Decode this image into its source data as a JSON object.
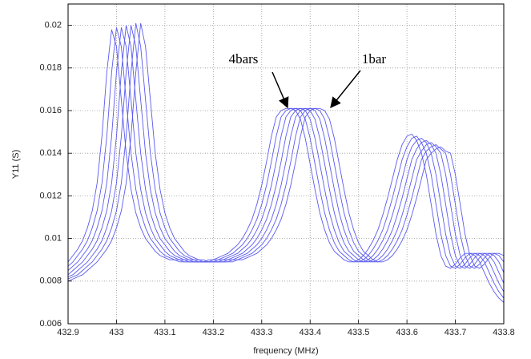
{
  "chart_data": {
    "type": "line",
    "xlabel": "frequency (MHz)",
    "ylabel": "Y11 (S)",
    "annotations": [
      {
        "text": "4bars"
      },
      {
        "text": "1bar"
      }
    ],
    "xlim": [
      432.9,
      433.8
    ],
    "ylim": [
      0.006,
      0.021
    ],
    "xticks": [
      432.9,
      433,
      433.1,
      433.2,
      433.3,
      433.4,
      433.5,
      433.6,
      433.7,
      433.8
    ],
    "yticks": [
      0.006,
      0.008,
      0.01,
      0.012,
      0.014,
      0.016,
      0.018,
      0.02
    ],
    "grid": true,
    "x": [
      432.9,
      432.91,
      432.92,
      432.93,
      432.94,
      432.95,
      432.96,
      432.97,
      432.98,
      432.99,
      433,
      433.01,
      433.02,
      433.03,
      433.04,
      433.05,
      433.06,
      433.07,
      433.08,
      433.09,
      433.1,
      433.11,
      433.12,
      433.13,
      433.14,
      433.15,
      433.16,
      433.17,
      433.18,
      433.19,
      433.2,
      433.21,
      433.22,
      433.23,
      433.24,
      433.25,
      433.26,
      433.27,
      433.28,
      433.29,
      433.3,
      433.31,
      433.32,
      433.33,
      433.34,
      433.35,
      433.36,
      433.37,
      433.38,
      433.39,
      433.4,
      433.41,
      433.42,
      433.43,
      433.44,
      433.45,
      433.46,
      433.47,
      433.48,
      433.49,
      433.5,
      433.51,
      433.52,
      433.53,
      433.54,
      433.55,
      433.56,
      433.57,
      433.58,
      433.59,
      433.6,
      433.61,
      433.62,
      433.63,
      433.64,
      433.65,
      433.66,
      433.67,
      433.68,
      433.69,
      433.7,
      433.71,
      433.72,
      433.73,
      433.74,
      433.75,
      433.76,
      433.77,
      433.78,
      433.79,
      433.8
    ],
    "series": [
      {
        "color": "#5a5af0",
        "values": [
          0.0089,
          0.0092,
          0.0095,
          0.0099,
          0.0105,
          0.0113,
          0.0126,
          0.0148,
          0.0178,
          0.0198,
          0.019,
          0.0165,
          0.014,
          0.0123,
          0.0112,
          0.0105,
          0.01,
          0.0097,
          0.0094,
          0.0092,
          0.0091,
          0.009,
          0.009,
          0.0089,
          0.0089,
          0.0089,
          0.0089,
          0.0089,
          0.0089,
          0.009,
          0.009,
          0.0091,
          0.0092,
          0.0093,
          0.0095,
          0.0097,
          0.01,
          0.0104,
          0.0109,
          0.0116,
          0.0125,
          0.0136,
          0.0148,
          0.0157,
          0.016,
          0.0161,
          0.0161,
          0.016,
          0.0156,
          0.0147,
          0.0135,
          0.0123,
          0.0112,
          0.0104,
          0.0098,
          0.0094,
          0.0092,
          0.009,
          0.0089,
          0.0089,
          0.009,
          0.0092,
          0.0095,
          0.0099,
          0.0104,
          0.0111,
          0.0119,
          0.0128,
          0.0137,
          0.0144,
          0.0148,
          0.0149,
          0.0146,
          0.014,
          0.013,
          0.0116,
          0.0102,
          0.0092,
          0.0087,
          0.0086,
          0.0088,
          0.0091,
          0.0093,
          0.0093,
          0.0092,
          0.0089,
          0.0084,
          0.0079,
          0.0075,
          0.0072,
          0.007
        ]
      },
      {
        "color": "#5a5af0",
        "values": [
          0.0087,
          0.0089,
          0.0092,
          0.0095,
          0.0099,
          0.0105,
          0.0113,
          0.0126,
          0.0148,
          0.0178,
          0.0199,
          0.019,
          0.0165,
          0.014,
          0.0123,
          0.0112,
          0.0105,
          0.01,
          0.0097,
          0.0094,
          0.0092,
          0.0091,
          0.009,
          0.009,
          0.0089,
          0.0089,
          0.0089,
          0.0089,
          0.0089,
          0.0089,
          0.009,
          0.009,
          0.0091,
          0.0092,
          0.0093,
          0.0095,
          0.0097,
          0.01,
          0.0104,
          0.0109,
          0.0116,
          0.0125,
          0.0136,
          0.0148,
          0.0157,
          0.016,
          0.0161,
          0.0161,
          0.016,
          0.0156,
          0.0147,
          0.0135,
          0.0123,
          0.0112,
          0.0104,
          0.0098,
          0.0094,
          0.0092,
          0.009,
          0.0089,
          0.0089,
          0.009,
          0.0092,
          0.0095,
          0.0099,
          0.0104,
          0.0111,
          0.0119,
          0.0128,
          0.0137,
          0.0143,
          0.0147,
          0.0148,
          0.0145,
          0.014,
          0.013,
          0.0116,
          0.0102,
          0.0092,
          0.0087,
          0.0086,
          0.0088,
          0.0091,
          0.0093,
          0.0093,
          0.0092,
          0.0089,
          0.0084,
          0.0079,
          0.0075,
          0.0072
        ]
      },
      {
        "color": "#5a5af0",
        "values": [
          0.0085,
          0.0087,
          0.0089,
          0.0092,
          0.0095,
          0.0099,
          0.0105,
          0.0113,
          0.0126,
          0.0148,
          0.0178,
          0.0199,
          0.019,
          0.0165,
          0.014,
          0.0123,
          0.0112,
          0.0105,
          0.01,
          0.0097,
          0.0094,
          0.0092,
          0.0091,
          0.009,
          0.009,
          0.0089,
          0.0089,
          0.0089,
          0.0089,
          0.0089,
          0.0089,
          0.009,
          0.009,
          0.0091,
          0.0092,
          0.0093,
          0.0095,
          0.0097,
          0.01,
          0.0104,
          0.0109,
          0.0116,
          0.0125,
          0.0136,
          0.0148,
          0.0157,
          0.016,
          0.0161,
          0.0161,
          0.016,
          0.0156,
          0.0147,
          0.0135,
          0.0123,
          0.0112,
          0.0104,
          0.0098,
          0.0094,
          0.0092,
          0.009,
          0.0089,
          0.0089,
          0.009,
          0.0092,
          0.0095,
          0.0099,
          0.0104,
          0.0111,
          0.0119,
          0.0128,
          0.0137,
          0.0143,
          0.0146,
          0.0147,
          0.0145,
          0.014,
          0.013,
          0.0116,
          0.0102,
          0.0092,
          0.0087,
          0.0086,
          0.0088,
          0.0091,
          0.0093,
          0.0093,
          0.0092,
          0.0089,
          0.0084,
          0.0079,
          0.0075
        ]
      },
      {
        "color": "#5a5af0",
        "values": [
          0.0083,
          0.0085,
          0.0087,
          0.0089,
          0.0092,
          0.0095,
          0.0099,
          0.0105,
          0.0113,
          0.0126,
          0.0148,
          0.0178,
          0.02,
          0.019,
          0.0165,
          0.014,
          0.0123,
          0.0112,
          0.0105,
          0.01,
          0.0097,
          0.0094,
          0.0092,
          0.0091,
          0.009,
          0.009,
          0.0089,
          0.0089,
          0.0089,
          0.0089,
          0.0089,
          0.0089,
          0.009,
          0.009,
          0.0091,
          0.0092,
          0.0093,
          0.0095,
          0.0097,
          0.01,
          0.0104,
          0.0109,
          0.0116,
          0.0125,
          0.0136,
          0.0148,
          0.0157,
          0.016,
          0.0161,
          0.0161,
          0.016,
          0.0156,
          0.0147,
          0.0135,
          0.0123,
          0.0112,
          0.0104,
          0.0098,
          0.0094,
          0.0092,
          0.009,
          0.0089,
          0.0089,
          0.009,
          0.0092,
          0.0095,
          0.0099,
          0.0104,
          0.0111,
          0.0119,
          0.0128,
          0.0137,
          0.0142,
          0.0145,
          0.0146,
          0.0144,
          0.014,
          0.013,
          0.0116,
          0.0102,
          0.0092,
          0.0087,
          0.0086,
          0.0088,
          0.0091,
          0.0093,
          0.0093,
          0.0092,
          0.0089,
          0.0084,
          0.0079
        ]
      },
      {
        "color": "#5a5af0",
        "values": [
          0.0082,
          0.0083,
          0.0085,
          0.0087,
          0.0089,
          0.0092,
          0.0095,
          0.0099,
          0.0105,
          0.0113,
          0.0126,
          0.0148,
          0.0178,
          0.02,
          0.019,
          0.0165,
          0.014,
          0.0123,
          0.0112,
          0.0105,
          0.01,
          0.0097,
          0.0094,
          0.0092,
          0.0091,
          0.009,
          0.009,
          0.0089,
          0.0089,
          0.0089,
          0.0089,
          0.0089,
          0.0089,
          0.009,
          0.009,
          0.0091,
          0.0092,
          0.0093,
          0.0095,
          0.0097,
          0.01,
          0.0104,
          0.0109,
          0.0116,
          0.0125,
          0.0136,
          0.0148,
          0.0157,
          0.016,
          0.0161,
          0.0161,
          0.016,
          0.0156,
          0.0147,
          0.0135,
          0.0123,
          0.0112,
          0.0104,
          0.0098,
          0.0094,
          0.0092,
          0.009,
          0.0089,
          0.0089,
          0.009,
          0.0092,
          0.0095,
          0.0099,
          0.0104,
          0.0111,
          0.0119,
          0.0128,
          0.0137,
          0.0141,
          0.0144,
          0.0145,
          0.0143,
          0.014,
          0.013,
          0.0116,
          0.0102,
          0.0092,
          0.0087,
          0.0086,
          0.0088,
          0.0091,
          0.0093,
          0.0093,
          0.0092,
          0.0089,
          0.0084
        ]
      },
      {
        "color": "#5a5af0",
        "values": [
          0.0081,
          0.0082,
          0.0083,
          0.0085,
          0.0087,
          0.0089,
          0.0092,
          0.0095,
          0.0099,
          0.0105,
          0.0113,
          0.0126,
          0.0148,
          0.0178,
          0.0201,
          0.019,
          0.0165,
          0.014,
          0.0123,
          0.0112,
          0.0105,
          0.01,
          0.0097,
          0.0094,
          0.0092,
          0.0091,
          0.009,
          0.009,
          0.0089,
          0.0089,
          0.0089,
          0.0089,
          0.0089,
          0.0089,
          0.009,
          0.009,
          0.0091,
          0.0092,
          0.0093,
          0.0095,
          0.0097,
          0.01,
          0.0104,
          0.0109,
          0.0116,
          0.0125,
          0.0136,
          0.0148,
          0.0157,
          0.016,
          0.0161,
          0.0161,
          0.016,
          0.0156,
          0.0147,
          0.0135,
          0.0123,
          0.0112,
          0.0104,
          0.0098,
          0.0094,
          0.0092,
          0.009,
          0.0089,
          0.0089,
          0.009,
          0.0092,
          0.0095,
          0.0099,
          0.0104,
          0.0111,
          0.0119,
          0.0128,
          0.0137,
          0.0141,
          0.0143,
          0.0144,
          0.0142,
          0.014,
          0.013,
          0.0116,
          0.0102,
          0.0092,
          0.0087,
          0.0086,
          0.0088,
          0.0091,
          0.0093,
          0.0093,
          0.0092,
          0.0089
        ]
      },
      {
        "color": "#5a5af0",
        "values": [
          0.008,
          0.0081,
          0.0082,
          0.0083,
          0.0085,
          0.0087,
          0.0089,
          0.0092,
          0.0095,
          0.0099,
          0.0105,
          0.0113,
          0.0126,
          0.0148,
          0.0178,
          0.0201,
          0.019,
          0.0165,
          0.014,
          0.0123,
          0.0112,
          0.0105,
          0.01,
          0.0097,
          0.0094,
          0.0092,
          0.0091,
          0.009,
          0.009,
          0.0089,
          0.0089,
          0.0089,
          0.0089,
          0.0089,
          0.0089,
          0.009,
          0.009,
          0.0091,
          0.0092,
          0.0093,
          0.0095,
          0.0097,
          0.01,
          0.0104,
          0.0109,
          0.0116,
          0.0125,
          0.0136,
          0.0148,
          0.0157,
          0.016,
          0.0161,
          0.0161,
          0.016,
          0.0156,
          0.0147,
          0.0135,
          0.0123,
          0.0112,
          0.0104,
          0.0098,
          0.0094,
          0.0092,
          0.009,
          0.0089,
          0.0089,
          0.009,
          0.0092,
          0.0095,
          0.0099,
          0.0104,
          0.0111,
          0.0119,
          0.0128,
          0.0137,
          0.014,
          0.0142,
          0.0143,
          0.0141,
          0.014,
          0.013,
          0.0116,
          0.0102,
          0.0092,
          0.0087,
          0.0086,
          0.0088,
          0.0091,
          0.0093,
          0.0093,
          0.0092
        ]
      }
    ]
  }
}
